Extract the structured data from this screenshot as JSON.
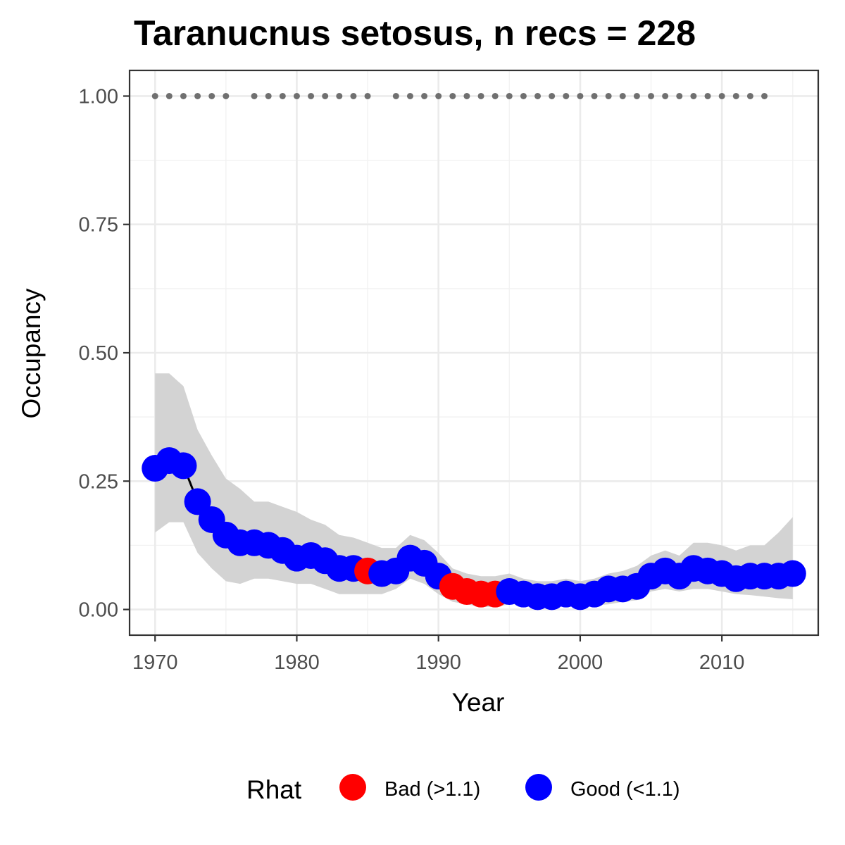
{
  "chart_data": {
    "type": "line",
    "title": "Taranucnus setosus, n recs = 228",
    "xlabel": "Year",
    "ylabel": "Occupancy",
    "xlim": [
      1968.2,
      2016.8
    ],
    "ylim": [
      -0.05,
      1.05
    ],
    "x_ticks": [
      1970,
      1980,
      1990,
      2000,
      2010
    ],
    "x_tick_labels": [
      "1970",
      "1980",
      "1990",
      "2000",
      "2010"
    ],
    "y_ticks": [
      0,
      0.25,
      0.5,
      0.75,
      1.0
    ],
    "y_tick_labels": [
      "0.00",
      "0.25",
      "0.50",
      "0.75",
      "1.00"
    ],
    "grid": true,
    "legend": {
      "title": "Rhat",
      "position": "bottom",
      "entries": [
        {
          "key": "bad",
          "label": "Bad (>1.1)",
          "color": "#ff0000"
        },
        {
          "key": "good",
          "label": "Good (<1.1)",
          "color": "#0000ff"
        }
      ]
    },
    "colors": {
      "good": "#0000ff",
      "bad": "#ff0000",
      "ribbon": "#d3d3d3",
      "line": "#000000",
      "record_dots": "#707070"
    },
    "series": {
      "years": [
        1970,
        1971,
        1972,
        1973,
        1974,
        1975,
        1976,
        1977,
        1978,
        1979,
        1980,
        1981,
        1982,
        1983,
        1984,
        1985,
        1986,
        1987,
        1988,
        1989,
        1990,
        1991,
        1992,
        1993,
        1994,
        1995,
        1996,
        1997,
        1998,
        1999,
        2000,
        2001,
        2002,
        2003,
        2004,
        2005,
        2006,
        2007,
        2008,
        2009,
        2010,
        2011,
        2012,
        2013,
        2014,
        2015
      ],
      "occupancy": [
        0.275,
        0.29,
        0.28,
        0.21,
        0.175,
        0.145,
        0.13,
        0.13,
        0.125,
        0.115,
        0.1,
        0.105,
        0.095,
        0.08,
        0.08,
        0.075,
        0.07,
        0.075,
        0.1,
        0.09,
        0.065,
        0.045,
        0.035,
        0.03,
        0.03,
        0.035,
        0.03,
        0.025,
        0.025,
        0.03,
        0.025,
        0.03,
        0.04,
        0.04,
        0.045,
        0.065,
        0.075,
        0.065,
        0.08,
        0.075,
        0.07,
        0.06,
        0.065,
        0.065,
        0.065,
        0.07
      ],
      "lower": [
        0.15,
        0.17,
        0.17,
        0.11,
        0.08,
        0.055,
        0.05,
        0.06,
        0.06,
        0.055,
        0.05,
        0.05,
        0.04,
        0.03,
        0.03,
        0.03,
        0.03,
        0.04,
        0.06,
        0.05,
        0.03,
        0.015,
        0.01,
        0.005,
        0.005,
        0.01,
        0.01,
        0.005,
        0.005,
        0.008,
        0.005,
        0.008,
        0.01,
        0.015,
        0.018,
        0.035,
        0.04,
        0.035,
        0.04,
        0.04,
        0.035,
        0.03,
        0.028,
        0.025,
        0.022,
        0.02
      ],
      "upper": [
        0.46,
        0.46,
        0.435,
        0.35,
        0.3,
        0.255,
        0.235,
        0.21,
        0.21,
        0.2,
        0.19,
        0.175,
        0.165,
        0.145,
        0.14,
        0.13,
        0.12,
        0.12,
        0.145,
        0.135,
        0.11,
        0.08,
        0.07,
        0.065,
        0.065,
        0.07,
        0.06,
        0.055,
        0.055,
        0.06,
        0.055,
        0.06,
        0.07,
        0.075,
        0.085,
        0.105,
        0.115,
        0.105,
        0.13,
        0.13,
        0.125,
        0.115,
        0.125,
        0.125,
        0.15,
        0.18
      ],
      "rhat": [
        "good",
        "good",
        "good",
        "good",
        "good",
        "good",
        "good",
        "good",
        "good",
        "good",
        "good",
        "good",
        "good",
        "good",
        "good",
        "bad",
        "good",
        "good",
        "good",
        "good",
        "good",
        "bad",
        "bad",
        "bad",
        "bad",
        "good",
        "good",
        "good",
        "good",
        "good",
        "good",
        "good",
        "good",
        "good",
        "good",
        "good",
        "good",
        "good",
        "good",
        "good",
        "good",
        "good",
        "good",
        "good",
        "good",
        "good"
      ]
    },
    "record_years": [
      1970,
      1971,
      1972,
      1973,
      1974,
      1975,
      1977,
      1978,
      1979,
      1980,
      1981,
      1982,
      1983,
      1984,
      1985,
      1987,
      1988,
      1989,
      1990,
      1991,
      1992,
      1993,
      1994,
      1995,
      1996,
      1997,
      1998,
      1999,
      2000,
      2001,
      2002,
      2003,
      2004,
      2005,
      2006,
      2007,
      2008,
      2009,
      2010,
      2011,
      2012,
      2013
    ],
    "record_value": 1.0
  }
}
